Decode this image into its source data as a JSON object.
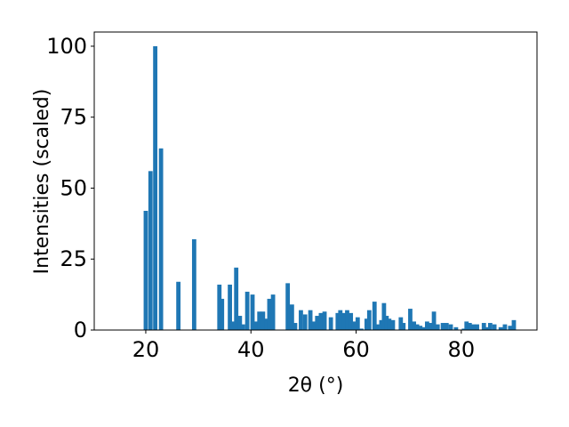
{
  "chart_data": {
    "type": "bar",
    "xlabel": "2θ (°)",
    "ylabel": "Intensities (scaled)",
    "color": "#1f77b4",
    "x": [
      20,
      20.9,
      21.8,
      22.9,
      26.2,
      29.2,
      34,
      34.5,
      36,
      36.6,
      37.2,
      37.9,
      38.5,
      39.3,
      40.3,
      41,
      41.6,
      42.3,
      42.9,
      43.5,
      44.2,
      47,
      47.8,
      48.4,
      49.5,
      50.3,
      51.3,
      52,
      52.6,
      53.3,
      54,
      55.2,
      56.5,
      57,
      57.7,
      58.3,
      59,
      59.5,
      60.3,
      61,
      62,
      62.5,
      63.5,
      64,
      64.8,
      65.3,
      65.8,
      66.3,
      67,
      68.5,
      69,
      70.3,
      71,
      71.6,
      72.2,
      73,
      73.5,
      74.2,
      74.8,
      75.5,
      76.5,
      77.2,
      78,
      79,
      80.5,
      81,
      81.6,
      82.3,
      83,
      84.3,
      85,
      85.5,
      86.3,
      87.5,
      88.3,
      89.3,
      90
    ],
    "values": [
      42,
      56,
      100,
      64,
      17,
      32,
      16,
      11,
      16,
      3,
      22,
      5,
      2,
      13.5,
      12.5,
      3,
      6.5,
      6.5,
      4,
      11,
      12.5,
      16.5,
      9,
      2.5,
      7,
      5.5,
      7,
      3,
      5,
      6,
      6.5,
      4.5,
      6,
      7,
      6,
      7,
      6,
      3,
      4.5,
      0.5,
      4,
      7,
      10,
      2,
      3.5,
      9.5,
      5,
      4,
      3.5,
      4.5,
      2.5,
      7.5,
      3,
      2,
      1.5,
      1,
      3,
      2.5,
      6.5,
      2,
      2.5,
      2.5,
      2,
      1,
      0.5,
      3,
      2.5,
      2,
      2,
      2.5,
      1,
      2.5,
      2,
      1,
      2,
      1.5,
      3.5
    ],
    "xlim": [
      10.2,
      94.4
    ],
    "xticks": [
      20,
      40,
      60,
      80
    ],
    "ylim": [
      0,
      105
    ],
    "yticks": [
      0,
      25,
      50,
      75,
      100
    ]
  }
}
